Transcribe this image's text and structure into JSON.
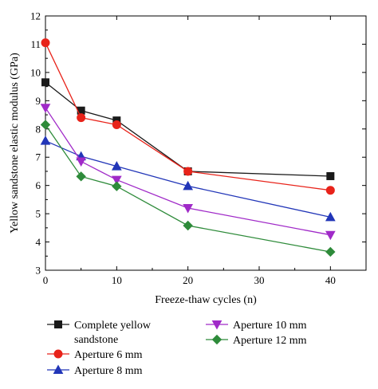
{
  "chart_data": {
    "type": "line",
    "title": "",
    "xlabel": "Freeze-thaw cycles (n)",
    "ylabel": "Yellow sandstone elastic modulus (GPa)",
    "xlim": [
      0,
      45
    ],
    "ylim": [
      3,
      12
    ],
    "xticks": [
      "0",
      "10",
      "20",
      "30",
      "40"
    ],
    "xtick_values": [
      0,
      10,
      20,
      30,
      40
    ],
    "yticks": [
      "3",
      "4",
      "5",
      "6",
      "7",
      "8",
      "9",
      "10",
      "11",
      "12"
    ],
    "ytick_values": [
      3,
      4,
      5,
      6,
      7,
      8,
      9,
      10,
      11,
      12
    ],
    "x": [
      0,
      5,
      10,
      20,
      40
    ],
    "grid": false,
    "legend_position": "below",
    "series": [
      {
        "name": "Complete yellow sandstone",
        "legend_lines": [
          "Complete yellow",
          "sandstone"
        ],
        "color": "#1a1a1a",
        "marker": "square",
        "values": [
          9.65,
          8.65,
          8.3,
          6.5,
          6.33
        ]
      },
      {
        "name": "Aperture 6 mm",
        "legend_lines": [
          "Aperture 6 mm"
        ],
        "color": "#e8231a",
        "marker": "circle",
        "values": [
          11.05,
          8.4,
          8.15,
          6.5,
          5.83
        ]
      },
      {
        "name": "Aperture 8 mm",
        "legend_lines": [
          "Aperture 8 mm"
        ],
        "color": "#2236b8",
        "marker": "triangle-up",
        "values": [
          7.58,
          7.03,
          6.68,
          5.98,
          4.88
        ]
      },
      {
        "name": "Aperture 10 mm",
        "legend_lines": [
          "Aperture 10 mm"
        ],
        "color": "#a02ac8",
        "marker": "triangle-down",
        "values": [
          8.75,
          6.85,
          6.2,
          5.2,
          4.25
        ]
      },
      {
        "name": "Aperture 12 mm",
        "legend_lines": [
          "Aperture 12 mm"
        ],
        "color": "#2e8b3a",
        "marker": "diamond",
        "values": [
          8.15,
          6.32,
          5.97,
          4.58,
          3.65
        ]
      }
    ]
  }
}
